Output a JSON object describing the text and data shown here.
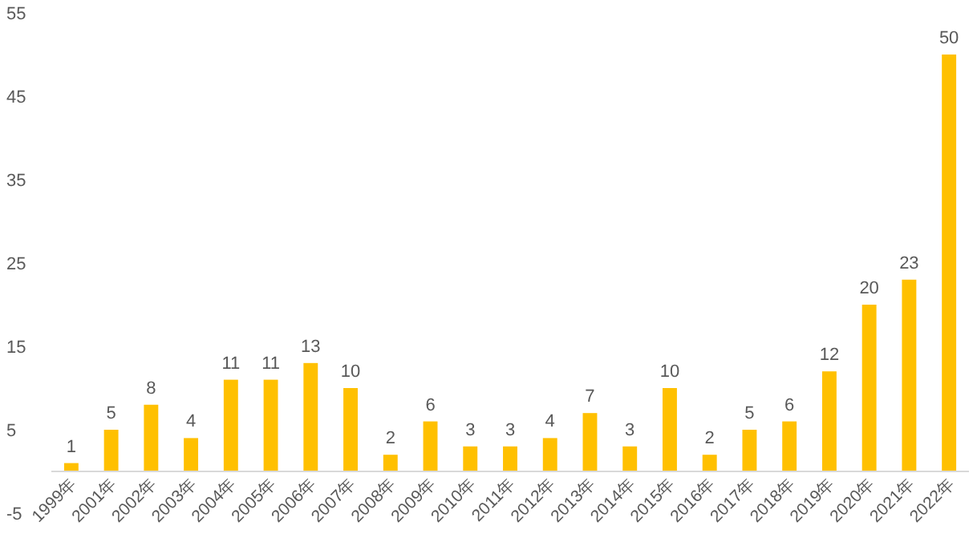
{
  "chart_data": {
    "type": "bar",
    "categories": [
      "1999年",
      "2001年",
      "2002年",
      "2003年",
      "2004年",
      "2005年",
      "2006年",
      "2007年",
      "2008年",
      "2009年",
      "2010年",
      "2011年",
      "2012年",
      "2013年",
      "2014年",
      "2015年",
      "2016年",
      "2017年",
      "2018年",
      "2019年",
      "2020年",
      "2021年",
      "2022年"
    ],
    "values": [
      1,
      5,
      8,
      4,
      11,
      11,
      13,
      10,
      2,
      6,
      3,
      3,
      4,
      7,
      3,
      10,
      2,
      5,
      6,
      12,
      20,
      23,
      50
    ],
    "color": "#ffc000",
    "ylim": [
      -5,
      55
    ],
    "yticks": [
      -5,
      5,
      15,
      25,
      35,
      45,
      55
    ],
    "data_labels": true
  }
}
